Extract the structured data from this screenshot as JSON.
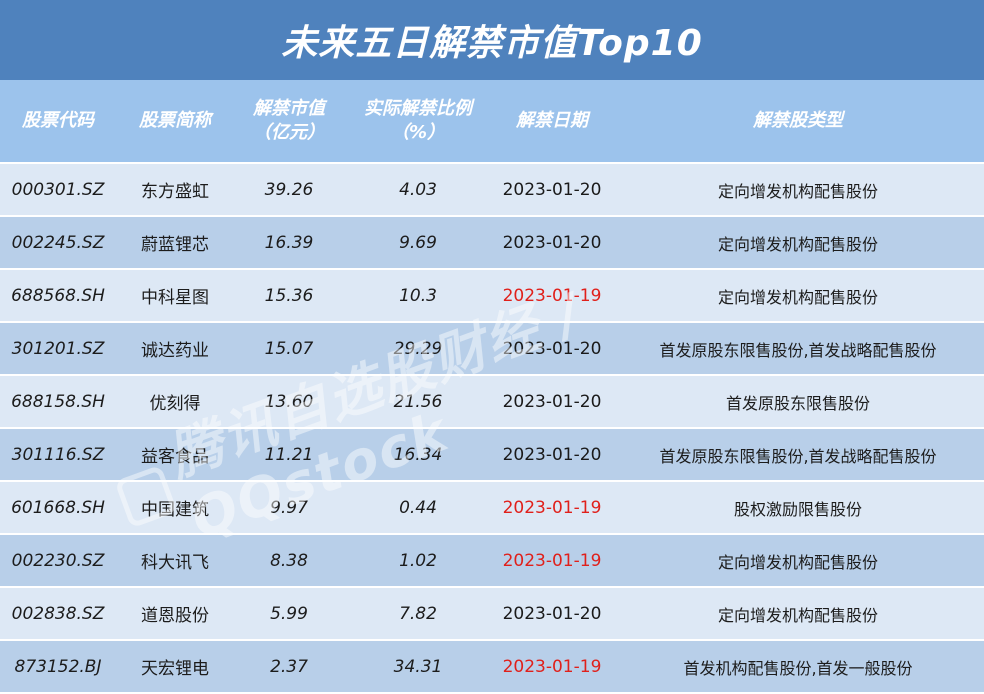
{
  "title": "未来五日解禁市值Top10",
  "headers": {
    "code": "股票代码",
    "name": "股票简称",
    "value_l1": "解禁市值",
    "value_l2": "（亿元）",
    "ratio_l1": "实际解禁比例",
    "ratio_l2": "（%）",
    "date": "解禁日期",
    "type": "解禁股类型"
  },
  "rows": [
    {
      "code": "000301.SZ",
      "name": "东方盛虹",
      "value": "39.26",
      "ratio": "4.03",
      "date": "2023-01-20",
      "type": "定向增发机构配售股份"
    },
    {
      "code": "002245.SZ",
      "name": "蔚蓝锂芯",
      "value": "16.39",
      "ratio": "9.69",
      "date": "2023-01-20",
      "type": "定向增发机构配售股份"
    },
    {
      "code": "688568.SH",
      "name": "中科星图",
      "value": "15.36",
      "ratio": "10.3",
      "date": "2023-01-19",
      "type": "定向增发机构配售股份"
    },
    {
      "code": "301201.SZ",
      "name": "诚达药业",
      "value": "15.07",
      "ratio": "29.29",
      "date": "2023-01-20",
      "type": "首发原股东限售股份,首发战略配售股份"
    },
    {
      "code": "688158.SH",
      "name": "优刻得",
      "value": "13.60",
      "ratio": "21.56",
      "date": "2023-01-20",
      "type": "首发原股东限售股份"
    },
    {
      "code": "301116.SZ",
      "name": "益客食品",
      "value": "11.21",
      "ratio": "16.34",
      "date": "2023-01-20",
      "type": "首发原股东限售股份,首发战略配售股份"
    },
    {
      "code": "601668.SH",
      "name": "中国建筑",
      "value": "9.97",
      "ratio": "0.44",
      "date": "2023-01-19",
      "type": "股权激励限售股份"
    },
    {
      "code": "002230.SZ",
      "name": "科大讯飞",
      "value": "8.38",
      "ratio": "1.02",
      "date": "2023-01-19",
      "type": "定向增发机构配售股份"
    },
    {
      "code": "002838.SZ",
      "name": "道恩股份",
      "value": "5.99",
      "ratio": "7.82",
      "date": "2023-01-20",
      "type": "定向增发机构配售股份"
    },
    {
      "code": "873152.BJ",
      "name": "天宏锂电",
      "value": "2.37",
      "ratio": "34.31",
      "date": "2023-01-19",
      "type": "首发机构配售股份,首发一般股份"
    }
  ],
  "highlight_date": "2023-01-19",
  "colors": {
    "highlight": "#e0201b",
    "header": "#9cc3ec",
    "title": "#4f82bd"
  },
  "watermark": "腾讯自选股财经 / QQstock"
}
